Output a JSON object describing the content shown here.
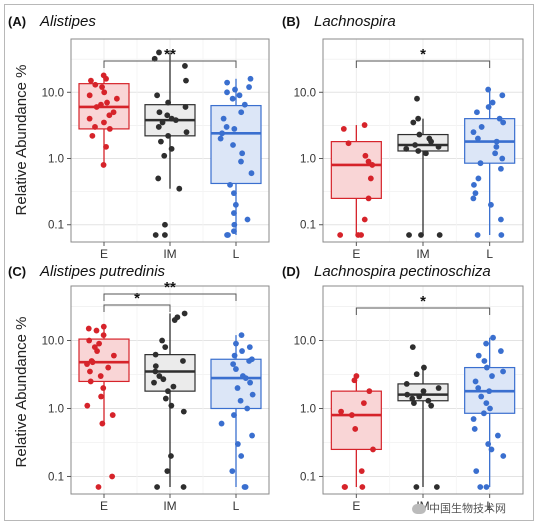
{
  "y_axis_label": "Relative Abundance %",
  "watermark": "中国生物技术网",
  "colors": {
    "E": "#d6232a",
    "IM": "#2e2e2e",
    "L": "#3a6fcf"
  },
  "fills": {
    "E": "#f9d5d6",
    "IM": "#ebebeb",
    "L": "#dce6f7"
  },
  "chart_data": [
    {
      "type": "box",
      "panel": "(A)",
      "title": "Alistipes",
      "categories": [
        "E",
        "IM",
        "L"
      ],
      "y_scale": "log",
      "ylim": [
        0.07,
        50
      ],
      "yticks": [
        "0.1",
        "1.0",
        "10.0"
      ],
      "boxes": {
        "E": {
          "q1": 2.8,
          "median": 6.0,
          "q3": 13.5,
          "whisker_low": 0.8,
          "whisker_high": 18
        },
        "IM": {
          "q1": 2.2,
          "median": 3.8,
          "q3": 6.5,
          "whisker_low": 0.35,
          "whisker_high": 40
        },
        "L": {
          "q1": 0.42,
          "median": 2.4,
          "q3": 6.3,
          "whisker_low": 0.07,
          "whisker_high": 16
        }
      },
      "points": {
        "E": [
          18,
          16,
          15,
          13,
          12,
          10,
          9,
          8,
          7,
          6.5,
          6,
          5,
          4.5,
          4,
          3.5,
          3,
          2.8,
          2.2,
          1.5,
          0.8
        ],
        "IM": [
          40,
          32,
          25,
          15,
          9,
          7,
          6,
          5,
          4.5,
          4,
          3.8,
          3.5,
          3,
          2.5,
          2.2,
          1.8,
          1.4,
          1.1,
          0.5,
          0.35,
          0.1,
          0.07,
          0.07
        ],
        "L": [
          16,
          14,
          12,
          11,
          10,
          9,
          8,
          6.5,
          5,
          4,
          3,
          2.8,
          2.4,
          2,
          1.6,
          1.2,
          0.9,
          0.6,
          0.4,
          0.3,
          0.2,
          0.15,
          0.12,
          0.1,
          0.08,
          0.07,
          0.07
        ]
      },
      "sig": [
        {
          "from": "E",
          "to": "L",
          "label": "**",
          "level": 0
        }
      ]
    },
    {
      "type": "box",
      "panel": "(B)",
      "title": "Lachnospira",
      "categories": [
        "E",
        "IM",
        "L"
      ],
      "y_scale": "log",
      "ylim": [
        0.07,
        50
      ],
      "yticks": [
        "0.1",
        "1.0",
        "10.0"
      ],
      "boxes": {
        "E": {
          "q1": 0.25,
          "median": 0.8,
          "q3": 1.8,
          "whisker_low": 0.07,
          "whisker_high": 3.2
        },
        "IM": {
          "q1": 1.3,
          "median": 1.6,
          "q3": 2.3,
          "whisker_low": 0.07,
          "whisker_high": 4.0
        },
        "L": {
          "q1": 0.85,
          "median": 1.8,
          "q3": 4.0,
          "whisker_low": 0.07,
          "whisker_high": 11
        }
      },
      "points": {
        "E": [
          3.2,
          2.8,
          1.7,
          1.1,
          0.9,
          0.8,
          0.5,
          0.25,
          0.12,
          0.07,
          0.07,
          0.07
        ],
        "IM": [
          8,
          4,
          3.5,
          2.3,
          2,
          1.8,
          1.6,
          1.5,
          1.4,
          1.3,
          1.2,
          0.07,
          0.07,
          0.07
        ],
        "L": [
          11,
          9,
          7,
          6,
          5,
          4,
          3.5,
          3,
          2.5,
          2,
          1.8,
          1.5,
          1.2,
          1,
          0.85,
          0.7,
          0.5,
          0.4,
          0.3,
          0.25,
          0.2,
          0.12,
          0.07,
          0.07
        ]
      },
      "sig": [
        {
          "from": "E",
          "to": "L",
          "label": "*",
          "level": 0
        }
      ]
    },
    {
      "type": "box",
      "panel": "(C)",
      "title": "Alistipes putredinis",
      "categories": [
        "E",
        "IM",
        "L"
      ],
      "y_scale": "log",
      "ylim": [
        0.07,
        50
      ],
      "yticks": [
        "0.1",
        "1.0",
        "10.0"
      ],
      "boxes": {
        "E": {
          "q1": 2.5,
          "median": 4.8,
          "q3": 10.5,
          "whisker_low": 0.6,
          "whisker_high": 16
        },
        "IM": {
          "q1": 1.8,
          "median": 3.5,
          "q3": 6.2,
          "whisker_low": 0.07,
          "whisker_high": 25
        },
        "L": {
          "q1": 1.0,
          "median": 2.8,
          "q3": 5.3,
          "whisker_low": 0.07,
          "whisker_high": 12
        }
      },
      "points": {
        "E": [
          16,
          15,
          14,
          12,
          10,
          9,
          8,
          7,
          6,
          5,
          4.8,
          4.5,
          4,
          3.5,
          3,
          2.5,
          2,
          1.5,
          1.1,
          0.8,
          0.6,
          0.1,
          0.07
        ],
        "IM": [
          25,
          22,
          20,
          10,
          8,
          6.2,
          5,
          4.2,
          3.5,
          3,
          2.7,
          2.4,
          2.1,
          1.8,
          1.4,
          1.1,
          0.9,
          0.2,
          0.12,
          0.07,
          0.07
        ],
        "L": [
          12,
          9,
          8,
          7,
          6,
          5.3,
          5,
          4.5,
          3.8,
          3,
          2.8,
          2.4,
          2,
          1.6,
          1.3,
          1,
          0.8,
          0.6,
          0.4,
          0.3,
          0.2,
          0.12,
          0.07,
          0.07
        ]
      },
      "sig": [
        {
          "from": "E",
          "to": "IM",
          "label": "*",
          "level": 0
        },
        {
          "from": "E",
          "to": "L",
          "label": "**",
          "level": 1
        }
      ]
    },
    {
      "type": "box",
      "panel": "(D)",
      "title": "Lachnospira pectinoschiza",
      "categories": [
        "E",
        "IM",
        "L"
      ],
      "y_scale": "log",
      "ylim": [
        0.07,
        50
      ],
      "yticks": [
        "0.1",
        "1.0",
        "10.0"
      ],
      "boxes": {
        "E": {
          "q1": 0.25,
          "median": 0.8,
          "q3": 1.8,
          "whisker_low": 0.07,
          "whisker_high": 3.0
        },
        "IM": {
          "q1": 1.3,
          "median": 1.6,
          "q3": 2.3,
          "whisker_low": 0.07,
          "whisker_high": 3.8
        },
        "L": {
          "q1": 0.85,
          "median": 1.8,
          "q3": 4.0,
          "whisker_low": 0.07,
          "whisker_high": 11
        }
      },
      "points": {
        "E": [
          3.0,
          2.6,
          1.8,
          1.2,
          0.9,
          0.8,
          0.5,
          0.25,
          0.12,
          0.07,
          0.07,
          0.07
        ],
        "IM": [
          8,
          4,
          3.2,
          2.3,
          2,
          1.8,
          1.6,
          1.5,
          1.4,
          1.3,
          1.2,
          1.1,
          0.07,
          0.07
        ],
        "L": [
          11,
          9,
          7,
          6,
          5,
          4,
          3.5,
          3,
          2.5,
          2,
          1.8,
          1.5,
          1.2,
          1,
          0.85,
          0.7,
          0.5,
          0.4,
          0.3,
          0.25,
          0.2,
          0.12,
          0.07,
          0.07
        ]
      },
      "sig": [
        {
          "from": "E",
          "to": "L",
          "label": "*",
          "level": 0
        }
      ]
    }
  ]
}
